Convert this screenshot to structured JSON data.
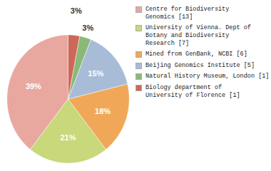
{
  "chart_data": {
    "type": "pie",
    "categories": [
      "Centre for Biodiversity\nGenomics [13]",
      "University of Vienna. Dept of\nBotany and Biodiversity\nResearch [7]",
      "Mined from GenBank, NCBI [6]",
      "Beijing Genomics Institute [5]",
      "Natural History Museum, London [1]",
      "Biology department of\nUniversity of Florence [1]"
    ],
    "values": [
      39,
      21,
      18,
      15,
      3,
      3
    ],
    "value_labels": [
      "39%",
      "21%",
      "18%",
      "15%",
      "3%",
      "3%"
    ],
    "colors": [
      "#e8a8a0",
      "#c8d87a",
      "#f0a858",
      "#a8bcd8",
      "#8ab878",
      "#cc6858"
    ],
    "data_labels": true,
    "legend": "right"
  }
}
